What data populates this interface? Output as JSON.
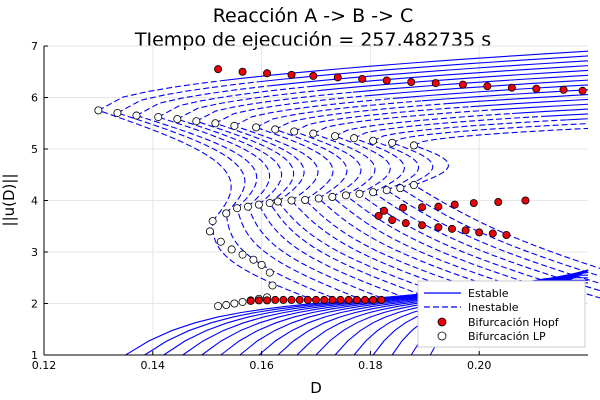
{
  "chart_data": {
    "type": "line",
    "title": [
      "Reacción A -> B -> C",
      "TIempo de ejecución = 257.482735 s"
    ],
    "xlabel": "D",
    "ylabel": "||u(D)||",
    "xlim": [
      0.12,
      0.22
    ],
    "ylim": [
      1,
      7
    ],
    "x_ticks": [
      0.12,
      0.14,
      0.16,
      0.18,
      0.2
    ],
    "x_tick_labels": [
      "0.12",
      "0.14",
      "0.16",
      "0.18",
      "0.20"
    ],
    "y_ticks": [
      1,
      2,
      3,
      4,
      5,
      6,
      7
    ],
    "y_tick_labels": [
      "1",
      "2",
      "3",
      "4",
      "5",
      "6",
      "7"
    ],
    "grid": true,
    "legend_position": "bottom-right",
    "legend": [
      {
        "label": "Estable",
        "style": "solid-line"
      },
      {
        "label": "Inestable",
        "style": "dashed-line"
      },
      {
        "label": "Bifurcación Hopf",
        "style": "red-dot"
      },
      {
        "label": "Bifurcación LP",
        "style": "white-dot"
      }
    ],
    "colors": {
      "branch": "#0000ff",
      "hopf": "#e8000b",
      "lp": "#ffffff",
      "axis": "#000000",
      "grid": "#e6e6e6"
    },
    "branch_family": {
      "count": 17,
      "lp_upper": {
        "D": [
          0.13,
          0.1335,
          0.137,
          0.141,
          0.1445,
          0.148,
          0.1515,
          0.155,
          0.159,
          0.1625,
          0.166,
          0.1695,
          0.1735,
          0.177,
          0.1805,
          0.184,
          0.188
        ],
        "y": [
          5.75,
          5.7,
          5.65,
          5.62,
          5.58,
          5.54,
          5.5,
          5.45,
          5.42,
          5.38,
          5.34,
          5.3,
          5.25,
          5.21,
          5.16,
          5.12,
          5.07
        ]
      },
      "lp_lower": {
        "D": [
          0.151,
          0.1535,
          0.1555,
          0.1575,
          0.1595,
          0.1615,
          0.163,
          0.1655,
          0.168,
          0.1705,
          0.173,
          0.1755,
          0.178,
          0.1805,
          0.183,
          0.1855,
          0.188
        ],
        "y": [
          3.6,
          3.75,
          3.85,
          3.88,
          3.92,
          3.95,
          3.98,
          4.0,
          4.01,
          4.04,
          4.07,
          4.1,
          4.13,
          4.16,
          4.2,
          4.24,
          4.3
        ]
      },
      "hopf_upper": {
        "D": [
          0.152,
          0.1565,
          0.161,
          0.1655,
          0.1695,
          0.174,
          0.1785,
          0.183,
          0.1875,
          0.192,
          0.197,
          0.2015,
          0.206,
          0.2105,
          0.2155,
          0.219
        ],
        "y": [
          6.55,
          6.5,
          6.47,
          6.44,
          6.42,
          6.39,
          6.36,
          6.33,
          6.3,
          6.28,
          6.25,
          6.22,
          6.19,
          6.17,
          6.15,
          6.13
        ]
      },
      "hopf_lower": {
        "D": [
          0.1815,
          0.1825,
          0.184,
          0.1865,
          0.1895,
          0.1925,
          0.195,
          0.1975,
          0.2,
          0.2025,
          0.205
        ],
        "y": [
          3.7,
          3.8,
          3.62,
          3.56,
          3.52,
          3.48,
          3.45,
          3.42,
          3.38,
          3.36,
          3.33
        ]
      },
      "hopf_lower_2": {
        "D": [
          0.186,
          0.1895,
          0.1925,
          0.1955,
          0.199,
          0.2035,
          0.2085
        ],
        "y": [
          3.86,
          3.87,
          3.88,
          3.92,
          3.95,
          3.97,
          4.0
        ]
      },
      "lp_low_branch": {
        "D": [
          0.1505,
          0.1525,
          0.1545,
          0.1565,
          0.1585,
          0.16,
          0.1615,
          0.162
        ],
        "y": [
          3.4,
          3.2,
          3.05,
          2.95,
          2.85,
          2.75,
          2.6,
          2.35
        ]
      },
      "lp_bottom": {
        "D": [
          0.152,
          0.1535,
          0.155,
          0.1565,
          0.158,
          0.1595,
          0.161
        ],
        "y": [
          1.95,
          1.97,
          2.0,
          2.03,
          2.06,
          2.09,
          2.12
        ]
      },
      "hopf_bottom": {
        "D": [
          0.158,
          0.1595,
          0.161,
          0.1625,
          0.164,
          0.1655,
          0.167,
          0.1685,
          0.17,
          0.1715,
          0.173,
          0.1745,
          0.176,
          0.1775,
          0.179,
          0.1805,
          0.182
        ],
        "y": [
          2.05,
          2.06,
          2.06,
          2.07,
          2.07,
          2.07,
          2.07,
          2.07,
          2.07,
          2.07,
          2.07,
          2.07,
          2.07,
          2.07,
          2.07,
          2.07,
          2.07
        ]
      }
    }
  }
}
